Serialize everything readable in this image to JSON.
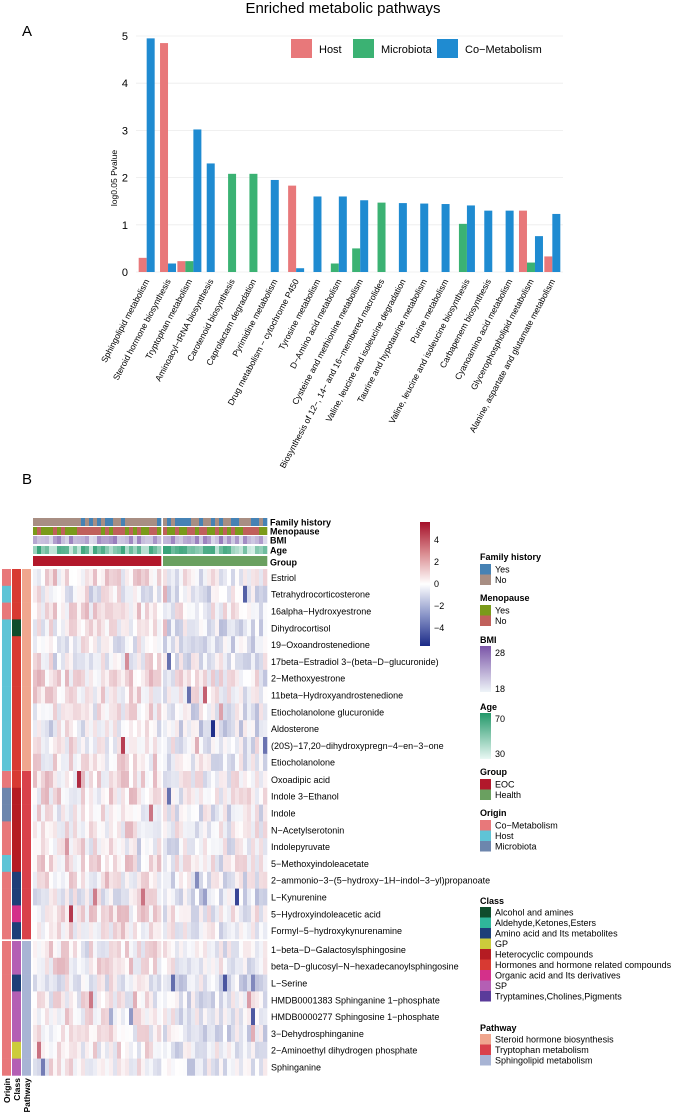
{
  "panel_a": {
    "panel_label": "A",
    "chart_data": {
      "type": "bar",
      "title": "Enriched metabolic pathways",
      "ylabel": "log0.05 Pvalue",
      "xlabel": "",
      "ylim": [
        0,
        5
      ],
      "yticks": [
        "0",
        "1",
        "2",
        "3",
        "4",
        "5"
      ],
      "legend_position": "top-right",
      "series": [
        {
          "name": "Host",
          "color": "#e8787a"
        },
        {
          "name": "Microbiota",
          "color": "#3bb273"
        },
        {
          "name": "Co−Metabolism",
          "color": "#1f8bd1"
        }
      ],
      "categories": [
        {
          "label": "Sphingolipid metabolism",
          "bars": [
            [
              "Host",
              0.3
            ],
            [
              "Co−Metabolism",
              4.95
            ]
          ]
        },
        {
          "label": "Steroid hormone biosynthesis",
          "bars": [
            [
              "Host",
              4.85
            ],
            [
              "Co−Metabolism",
              0.18
            ]
          ]
        },
        {
          "label": "Tryptophan metabolism",
          "bars": [
            [
              "Host",
              0.23
            ],
            [
              "Microbiota",
              0.23
            ],
            [
              "Co−Metabolism",
              3.02
            ]
          ]
        },
        {
          "label": "Aminoacyl−tRNA biosynthesis",
          "bars": [
            [
              "Co−Metabolism",
              2.3
            ]
          ]
        },
        {
          "label": "Carotenoid biosynthesis",
          "bars": [
            [
              "Microbiota",
              2.08
            ]
          ]
        },
        {
          "label": "Caprolactam degradation",
          "bars": [
            [
              "Microbiota",
              2.08
            ]
          ]
        },
        {
          "label": "Pyrimidine metabolism",
          "bars": [
            [
              "Co−Metabolism",
              1.95
            ]
          ]
        },
        {
          "label": "Drug metabolism − cytochrome P450",
          "bars": [
            [
              "Host",
              1.83
            ],
            [
              "Co−Metabolism",
              0.08
            ]
          ]
        },
        {
          "label": "Tyrosine metabolism",
          "bars": [
            [
              "Co−Metabolism",
              1.6
            ]
          ]
        },
        {
          "label": "D−Amino acid metabolism",
          "bars": [
            [
              "Microbiota",
              0.18
            ],
            [
              "Co−Metabolism",
              1.6
            ]
          ]
        },
        {
          "label": "Cysteine and methionine metabolism",
          "bars": [
            [
              "Microbiota",
              0.5
            ],
            [
              "Co−Metabolism",
              1.52
            ]
          ]
        },
        {
          "label": "Biosynthesis of 12−, 14− and 16−membered macrolides",
          "bars": [
            [
              "Microbiota",
              1.47
            ]
          ]
        },
        {
          "label": "Valine, leucine and isoleucine degradation",
          "bars": [
            [
              "Co−Metabolism",
              1.46
            ]
          ]
        },
        {
          "label": "Taurine and hypotaurine metabolism",
          "bars": [
            [
              "Co−Metabolism",
              1.45
            ]
          ]
        },
        {
          "label": "Purine metabolism",
          "bars": [
            [
              "Co−Metabolism",
              1.44
            ]
          ]
        },
        {
          "label": "Valine, leucine and isoleucine biosynthesis",
          "bars": [
            [
              "Microbiota",
              1.02
            ],
            [
              "Co−Metabolism",
              1.41
            ]
          ]
        },
        {
          "label": "Carbapenem biosynthesis",
          "bars": [
            [
              "Co−Metabolism",
              1.3
            ]
          ]
        },
        {
          "label": "Cyanoamino acid metabolism",
          "bars": [
            [
              "Co−Metabolism",
              1.3
            ]
          ]
        },
        {
          "label": "Glycerophospholipid metabolism",
          "bars": [
            [
              "Host",
              1.3
            ],
            [
              "Microbiota",
              0.2
            ],
            [
              "Co−Metabolism",
              0.76
            ]
          ]
        },
        {
          "label": "Alanine, aspartate and glutamate metabolism",
          "bars": [
            [
              "Host",
              0.33
            ],
            [
              "Co−Metabolism",
              1.23
            ]
          ]
        }
      ]
    }
  },
  "panel_b": {
    "panel_label": "B",
    "chart_data": {
      "type": "heatmap",
      "title": "",
      "color_scale": {
        "min": -5,
        "max": 5,
        "ticks": [
          "4",
          "2",
          "0",
          "−2",
          "−4"
        ],
        "low": "#1b2a87",
        "mid": "#ffffff",
        "high": "#a5102a"
      },
      "top_annotation_labels": [
        "Family history",
        "Menopause",
        "BMI",
        "Age",
        "Group"
      ],
      "left_annotation_labels": [
        "Origin",
        "Class",
        "Pathway"
      ],
      "groups": {
        "EOC": 32,
        "Health": 26
      },
      "row_blocks": [
        {
          "pathway": "Steroid hormone biosynthesis",
          "rows": [
            {
              "name": "Estriol",
              "origin": "Co−Metabolism",
              "class": "Hormones and hormone related compounds"
            },
            {
              "name": "Tetrahydrocorticosterone",
              "origin": "Host",
              "class": "Hormones and hormone related compounds"
            },
            {
              "name": "16alpha−Hydroxyestrone",
              "origin": "Co−Metabolism",
              "class": "Hormones and hormone related compounds"
            },
            {
              "name": "Dihydrocortisol",
              "origin": "Host",
              "class": "Alcohol and amines"
            },
            {
              "name": "19−Oxoandrostenedione",
              "origin": "Host",
              "class": "Hormones and hormone related compounds"
            },
            {
              "name": "17beta−Estradiol 3−(beta−D−glucuronide)",
              "origin": "Host",
              "class": "Hormones and hormone related compounds"
            },
            {
              "name": "2−Methoxyestrone",
              "origin": "Host",
              "class": "Hormones and hormone related compounds"
            },
            {
              "name": "11beta−Hydroxyandrostenedione",
              "origin": "Host",
              "class": "Hormones and hormone related compounds"
            },
            {
              "name": "Etiocholanolone glucuronide",
              "origin": "Host",
              "class": "Hormones and hormone related compounds"
            },
            {
              "name": "Aldosterone",
              "origin": "Host",
              "class": "Hormones and hormone related compounds"
            },
            {
              "name": "(20S)−17,20−dihydroxypregn−4−en−3−one",
              "origin": "Host",
              "class": "Hormones and hormone related compounds"
            },
            {
              "name": "Etiocholanolone",
              "origin": "Host",
              "class": "Hormones and hormone related compounds"
            }
          ]
        },
        {
          "pathway": "Tryptophan metabolism",
          "rows": [
            {
              "name": "Oxoadipic acid",
              "origin": "Co−Metabolism",
              "class": "Hormones and hormone related compounds"
            },
            {
              "name": "Indole 3−Ethanol",
              "origin": "Microbiota",
              "class": "Heterocyclic compounds"
            },
            {
              "name": "Indole",
              "origin": "Microbiota",
              "class": "Heterocyclic compounds"
            },
            {
              "name": "N−Acetylserotonin",
              "origin": "Co−Metabolism",
              "class": "Heterocyclic compounds"
            },
            {
              "name": "Indolepyruvate",
              "origin": "Co−Metabolism",
              "class": "Heterocyclic compounds"
            },
            {
              "name": "5−Methoxyindoleacetate",
              "origin": "Host",
              "class": "Heterocyclic compounds"
            },
            {
              "name": "2−ammonio−3−(5−hydroxy−1H−indol−3−yl)propanoate",
              "origin": "Co−Metabolism",
              "class": "Amino acid and Its metabolites"
            },
            {
              "name": "L−Kynurenine",
              "origin": "Co−Metabolism",
              "class": "Amino acid and Its metabolites"
            },
            {
              "name": "5−Hydroxyindoleacetic acid",
              "origin": "Co−Metabolism",
              "class": "Organic acid and Its derivatives"
            },
            {
              "name": "Formyl−5−hydroxykynurenamine",
              "origin": "Co−Metabolism",
              "class": "Amino acid and Its metabolites"
            }
          ]
        },
        {
          "pathway": "Sphingolipid metabolism",
          "rows": [
            {
              "name": "1−beta−D−Galactosylsphingosine",
              "origin": "Co−Metabolism",
              "class": "SP"
            },
            {
              "name": "beta−D−glucosyl−N−hexadecanoylsphingosine",
              "origin": "Co−Metabolism",
              "class": "SP"
            },
            {
              "name": "L−Serine",
              "origin": "Co−Metabolism",
              "class": "Amino acid and Its metabolites"
            },
            {
              "name": "HMDB0001383 Sphinganine 1−phosphate",
              "origin": "Co−Metabolism",
              "class": "SP"
            },
            {
              "name": "HMDB0000277 Sphingosine 1−phosphate",
              "origin": "Co−Metabolism",
              "class": "SP"
            },
            {
              "name": "3−Dehydrosphinganine",
              "origin": "Co−Metabolism",
              "class": "SP"
            },
            {
              "name": "2−Aminoethyl dihydrogen phosphate",
              "origin": "Co−Metabolism",
              "class": "GP"
            },
            {
              "name": "Sphinganine",
              "origin": "Co−Metabolism",
              "class": "SP"
            }
          ]
        }
      ],
      "legends": {
        "family_history": {
          "title": "Family history",
          "items": [
            {
              "label": "Yes",
              "color": "#4682b4"
            },
            {
              "label": "No",
              "color": "#a88e83"
            }
          ]
        },
        "menopause": {
          "title": "Menopause",
          "items": [
            {
              "label": "Yes",
              "color": "#7a9a1a"
            },
            {
              "label": "No",
              "color": "#c0605b"
            }
          ]
        },
        "bmi": {
          "title": "BMI",
          "high": "28",
          "low": "18",
          "color_high": "#7b55a8",
          "color_low": "#eef4f8"
        },
        "age": {
          "title": "Age",
          "high": "70",
          "low": "30",
          "color_high": "#23986a",
          "color_low": "#e9f8f4"
        },
        "group": {
          "title": "Group",
          "items": [
            {
              "label": "EOC",
              "color": "#b2182b"
            },
            {
              "label": "Health",
              "color": "#6aa060"
            }
          ]
        },
        "origin": {
          "title": "Origin",
          "items": [
            {
              "label": "Co−Metabolism",
              "color": "#e8787a"
            },
            {
              "label": "Host",
              "color": "#5fc4d6"
            },
            {
              "label": "Microbiota",
              "color": "#6d86ad"
            }
          ]
        },
        "class": {
          "title": "Class",
          "items": [
            {
              "label": "Alcohol and amines",
              "color": "#0f4d2c"
            },
            {
              "label": "Aldehyde,Ketones,Esters",
              "color": "#2fb79a"
            },
            {
              "label": "Amino acid and Its metabolites",
              "color": "#1d3e78"
            },
            {
              "label": "GP",
              "color": "#cccc3b"
            },
            {
              "label": "Heterocyclic compounds",
              "color": "#b51c22"
            },
            {
              "label": "Hormones and hormone related compounds",
              "color": "#d83a32"
            },
            {
              "label": "Organic acid and Its derivatives",
              "color": "#d4308a"
            },
            {
              "label": "SP",
              "color": "#b45fb4"
            },
            {
              "label": "Tryptamines,Cholines,Pigments",
              "color": "#5a3b9a"
            }
          ]
        },
        "pathway": {
          "title": "Pathway",
          "items": [
            {
              "label": "Steroid hormone biosynthesis",
              "color": "#f0a68e"
            },
            {
              "label": "Tryptophan metabolism",
              "color": "#d9414a"
            },
            {
              "label": "Sphingolipid metabolism",
              "color": "#a8b4d4"
            }
          ]
        }
      }
    }
  }
}
